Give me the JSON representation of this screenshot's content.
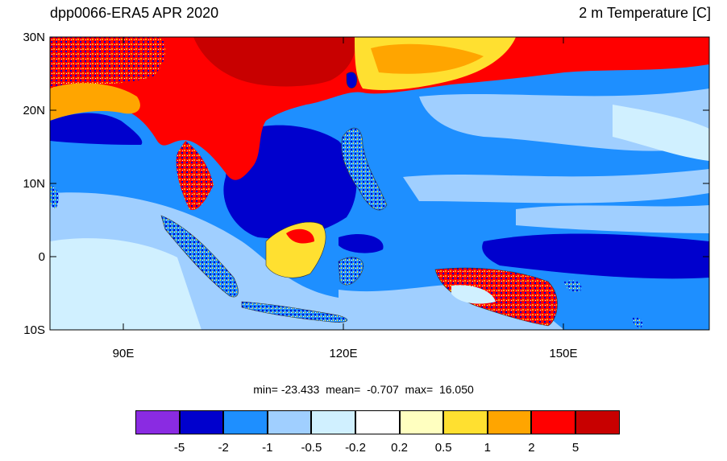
{
  "header": {
    "left_title": "dpp0066-ERA5 APR 2020",
    "right_title": "2 m Temperature [C]"
  },
  "axes": {
    "lat_labels": [
      "30N",
      "20N",
      "10N",
      "0",
      "10S"
    ],
    "lon_labels": [
      "90E",
      "120E",
      "150E"
    ]
  },
  "stats": {
    "text": "min= -23.433  mean=  -0.707  max=  16.050"
  },
  "legend": {
    "colors": [
      "#8a2be2",
      "#0000cd",
      "#1e8fff",
      "#a0cfff",
      "#d0f0ff",
      "#ffffff",
      "#ffffc0",
      "#ffe030",
      "#ffa500",
      "#ff0000",
      "#c80000"
    ],
    "labels": [
      "-5",
      "-2",
      "-1",
      "-0.5",
      "-0.2",
      "0.2",
      "0.5",
      "1",
      "2",
      "5"
    ]
  },
  "colors": {
    "ocean_base": "#1e8fff",
    "ocean_light": "#a0cfff",
    "ocean_pale": "#d0f0ff",
    "deep": "#0000cd",
    "hot": "#ff0000",
    "dark_hot": "#c80000",
    "warm": "#ffa500",
    "yellow": "#ffe030"
  }
}
